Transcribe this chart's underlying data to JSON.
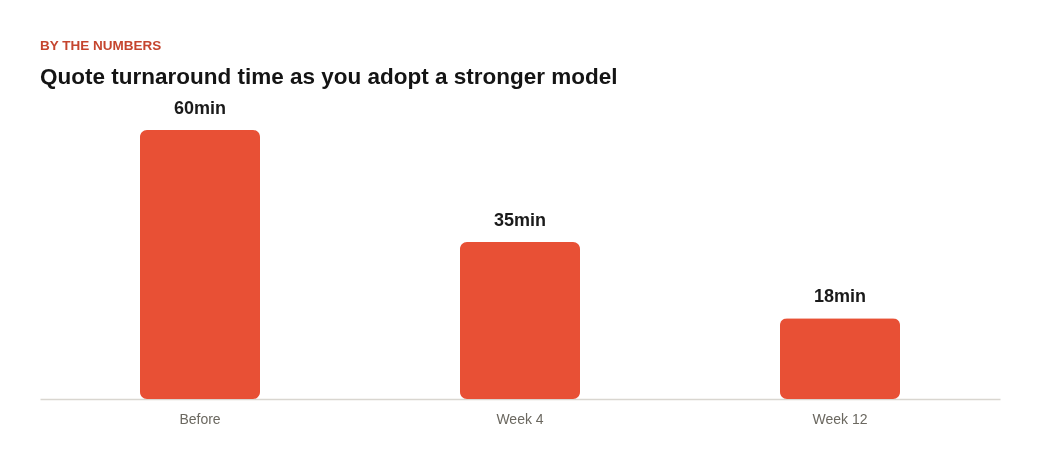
{
  "chart_data": {
    "type": "bar",
    "subtitle": "BY THE NUMBERS",
    "title": "Quote turnaround time as you adopt a stronger model",
    "categories": [
      "Before",
      "Week 4",
      "Week 12"
    ],
    "values": [
      60,
      35,
      18
    ],
    "value_labels": [
      "60min",
      "35min",
      "18min"
    ],
    "color": "#e85035",
    "ylim": [
      0,
      60
    ],
    "tick_labels": "x"
  }
}
